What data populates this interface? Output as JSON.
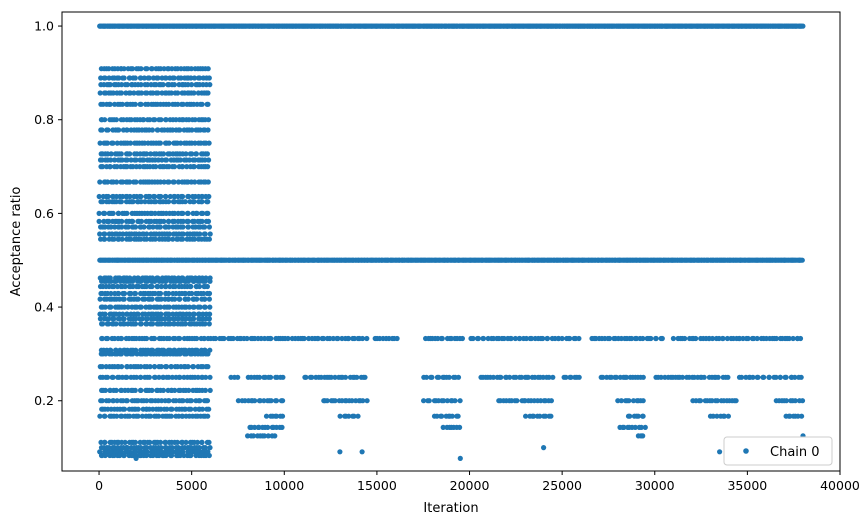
{
  "chart_data": {
    "type": "scatter",
    "title": "",
    "xlabel": "Iteration",
    "ylabel": "Acceptance ratio",
    "xlim": [
      -2000,
      40000
    ],
    "ylim": [
      0.05,
      1.03
    ],
    "xticks": [
      0,
      5000,
      10000,
      15000,
      20000,
      25000,
      30000,
      35000,
      40000
    ],
    "xtick_labels": [
      "0",
      "5000",
      "10000",
      "15000",
      "20000",
      "25000",
      "30000",
      "35000",
      "40000"
    ],
    "yticks": [
      0.2,
      0.4,
      0.6,
      0.8,
      1.0
    ],
    "ytick_labels": [
      "0.2",
      "0.4",
      "0.6",
      "0.8",
      "1.0"
    ],
    "grid": false,
    "legend": {
      "position": "lower-right",
      "entries": [
        "Chain 0"
      ]
    },
    "color": "#1f77b4",
    "series": [
      {
        "name": "Chain 0",
        "levels": [
          {
            "y": 1.0,
            "segments": [
              [
                0,
                38000
              ]
            ]
          },
          {
            "y": 0.909,
            "segments": [
              [
                0,
                6000
              ]
            ]
          },
          {
            "y": 0.889,
            "segments": [
              [
                0,
                6000
              ]
            ]
          },
          {
            "y": 0.875,
            "segments": [
              [
                0,
                6000
              ]
            ]
          },
          {
            "y": 0.857,
            "segments": [
              [
                0,
                6000
              ]
            ]
          },
          {
            "y": 0.833,
            "segments": [
              [
                0,
                6000
              ]
            ]
          },
          {
            "y": 0.8,
            "segments": [
              [
                0,
                6000
              ]
            ]
          },
          {
            "y": 0.778,
            "segments": [
              [
                0,
                6000
              ]
            ]
          },
          {
            "y": 0.75,
            "segments": [
              [
                0,
                6000
              ]
            ]
          },
          {
            "y": 0.727,
            "segments": [
              [
                0,
                6000
              ]
            ]
          },
          {
            "y": 0.714,
            "segments": [
              [
                0,
                6000
              ]
            ]
          },
          {
            "y": 0.7,
            "segments": [
              [
                0,
                6000
              ]
            ]
          },
          {
            "y": 0.667,
            "segments": [
              [
                0,
                6000
              ]
            ]
          },
          {
            "y": 0.636,
            "segments": [
              [
                0,
                6000
              ]
            ]
          },
          {
            "y": 0.625,
            "segments": [
              [
                0,
                6000
              ]
            ]
          },
          {
            "y": 0.6,
            "segments": [
              [
                0,
                6000
              ]
            ]
          },
          {
            "y": 0.583,
            "segments": [
              [
                0,
                6000
              ]
            ]
          },
          {
            "y": 0.571,
            "segments": [
              [
                0,
                6000
              ]
            ]
          },
          {
            "y": 0.556,
            "segments": [
              [
                0,
                6000
              ]
            ]
          },
          {
            "y": 0.545,
            "segments": [
              [
                0,
                6000
              ]
            ]
          },
          {
            "y": 0.5,
            "segments": [
              [
                0,
                38000
              ]
            ]
          },
          {
            "y": 0.462,
            "segments": [
              [
                0,
                6000
              ]
            ]
          },
          {
            "y": 0.455,
            "segments": [
              [
                0,
                6000
              ]
            ]
          },
          {
            "y": 0.444,
            "segments": [
              [
                0,
                6000
              ]
            ]
          },
          {
            "y": 0.429,
            "segments": [
              [
                0,
                6000
              ]
            ]
          },
          {
            "y": 0.417,
            "segments": [
              [
                0,
                6000
              ]
            ]
          },
          {
            "y": 0.4,
            "segments": [
              [
                0,
                6000
              ]
            ]
          },
          {
            "y": 0.385,
            "segments": [
              [
                0,
                6000
              ]
            ]
          },
          {
            "y": 0.375,
            "segments": [
              [
                0,
                6000
              ]
            ]
          },
          {
            "y": 0.364,
            "segments": [
              [
                0,
                6000
              ]
            ]
          },
          {
            "y": 0.333,
            "segments": [
              [
                0,
                14500
              ],
              [
                14800,
                16200
              ],
              [
                17500,
                19700
              ],
              [
                20000,
                26000
              ],
              [
                26500,
                30500
              ],
              [
                31000,
                38000
              ]
            ]
          },
          {
            "y": 0.308,
            "segments": [
              [
                0,
                6000
              ]
            ]
          },
          {
            "y": 0.3,
            "segments": [
              [
                0,
                6000
              ]
            ]
          },
          {
            "y": 0.273,
            "segments": [
              [
                0,
                6000
              ]
            ]
          },
          {
            "y": 0.25,
            "segments": [
              [
                0,
                6000
              ],
              [
                7000,
                7500
              ],
              [
                8000,
                10000
              ],
              [
                11000,
                14500
              ],
              [
                17500,
                19500
              ],
              [
                20500,
                24500
              ],
              [
                25000,
                26000
              ],
              [
                27000,
                29500
              ],
              [
                30000,
                34000
              ],
              [
                34500,
                38000
              ]
            ]
          },
          {
            "y": 0.222,
            "segments": [
              [
                0,
                6000
              ]
            ]
          },
          {
            "y": 0.2,
            "segments": [
              [
                0,
                6000
              ],
              [
                7500,
                10000
              ],
              [
                12000,
                14500
              ],
              [
                17500,
                19500
              ],
              [
                21500,
                24500
              ],
              [
                28000,
                29500
              ],
              [
                32000,
                34500
              ],
              [
                36500,
                38000
              ]
            ]
          },
          {
            "y": 0.182,
            "segments": [
              [
                0,
                6000
              ]
            ]
          },
          {
            "y": 0.167,
            "segments": [
              [
                0,
                6000
              ],
              [
                9000,
                10000
              ],
              [
                13000,
                14000
              ],
              [
                18000,
                19500
              ],
              [
                23000,
                24500
              ],
              [
                28500,
                29500
              ],
              [
                33000,
                34000
              ],
              [
                37000,
                38000
              ]
            ]
          },
          {
            "y": 0.143,
            "segments": [
              [
                8000,
                10000
              ],
              [
                18500,
                19500
              ],
              [
                28000,
                29500
              ]
            ]
          },
          {
            "y": 0.125,
            "segments": [
              [
                8000,
                9500
              ],
              [
                29000,
                29500
              ],
              [
                38000,
                38000
              ]
            ]
          },
          {
            "y": 0.111,
            "segments": [
              [
                0,
                6000
              ]
            ]
          },
          {
            "y": 0.1,
            "segments": [
              [
                0,
                6000
              ],
              [
                24000,
                24000
              ]
            ]
          },
          {
            "y": 0.091,
            "segments": [
              [
                0,
                6000
              ],
              [
                13000,
                13000
              ],
              [
                14200,
                14200
              ],
              [
                33500,
                33500
              ]
            ]
          },
          {
            "y": 0.083,
            "segments": [
              [
                0,
                6000
              ]
            ]
          },
          {
            "y": 0.077,
            "segments": [
              [
                2000,
                2000
              ],
              [
                19500,
                19500
              ]
            ]
          }
        ]
      }
    ]
  }
}
